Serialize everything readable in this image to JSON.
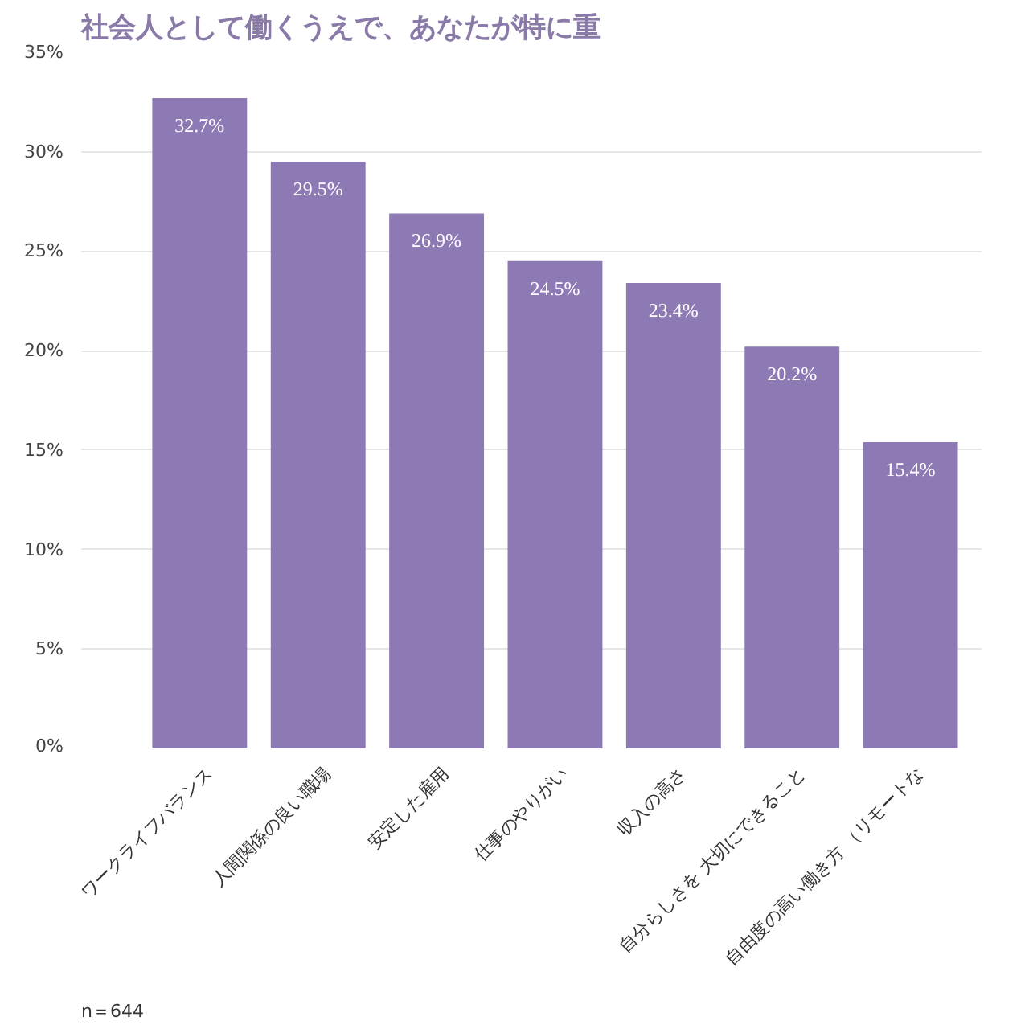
{
  "chart_data": {
    "type": "bar",
    "title": "社会人として働くうえで、あなたが特に重",
    "categories": [
      "ワークライフバランス",
      "人間関係の良い職場",
      "安定した雇用",
      "仕事のやりがい",
      "収入の高さ",
      "自分らしさを\n大切にできること",
      "自由度の高い働き方\n（リモートな"
    ],
    "values": [
      32.7,
      29.5,
      26.9,
      24.5,
      23.4,
      20.2,
      15.4
    ],
    "value_labels": [
      "32.7%",
      "29.5%",
      "26.9%",
      "24.5%",
      "23.4%",
      "20.2%",
      "15.4%"
    ],
    "color": "#8d79b4",
    "ylim": [
      0,
      35
    ],
    "yticks": [
      {
        "value": 0,
        "label": "0%"
      },
      {
        "value": 5,
        "label": "5%"
      },
      {
        "value": 10,
        "label": "10%"
      },
      {
        "value": 15,
        "label": "15%"
      },
      {
        "value": 20,
        "label": "20%"
      },
      {
        "value": 25,
        "label": "25%"
      },
      {
        "value": 30,
        "label": "30%"
      },
      {
        "value": 35,
        "label": "35%"
      }
    ],
    "grid": "y",
    "annotations": [
      "n＝644"
    ]
  }
}
